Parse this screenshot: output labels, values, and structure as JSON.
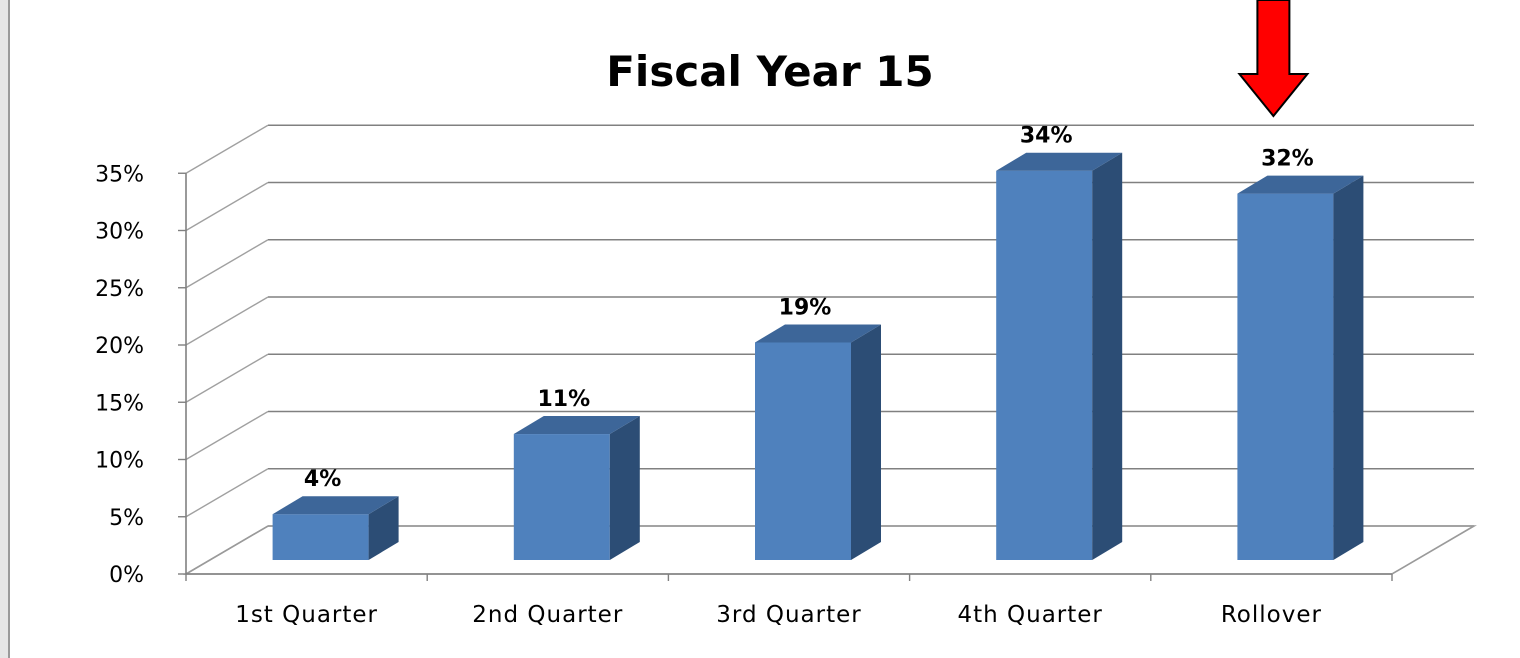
{
  "chart_data": {
    "type": "bar",
    "title": "Fiscal Year 15",
    "categories": [
      "1st Quarter",
      "2nd Quarter",
      "3rd Quarter",
      "4th Quarter",
      "Rollover"
    ],
    "values": [
      4,
      11,
      19,
      34,
      32
    ],
    "data_labels": [
      "4%",
      "11%",
      "19%",
      "34%",
      "32%"
    ],
    "ytick_labels": [
      "0%",
      "5%",
      "10%",
      "15%",
      "20%",
      "25%",
      "30%",
      "35%"
    ],
    "ylim": [
      0,
      35
    ],
    "grid": true,
    "legend": "none",
    "style": "3d-column",
    "colors": {
      "bar_front": "#4f81bd",
      "bar_side": "#2c4d75",
      "bar_top": "#3d6699",
      "arrow": "#ff0000"
    }
  },
  "annotation": {
    "arrow_points_to": "Rollover",
    "icon": "down-arrow-icon"
  }
}
